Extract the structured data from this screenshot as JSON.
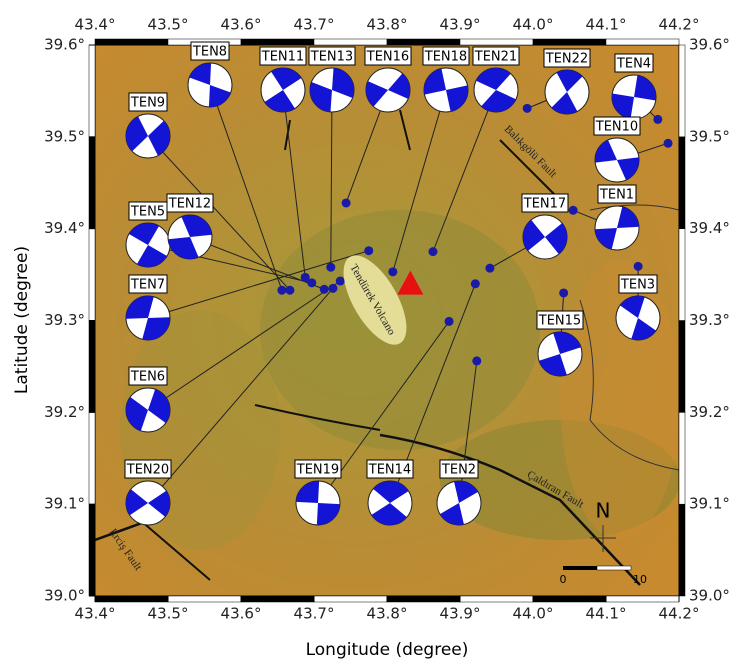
{
  "map": {
    "x_axis_label": "Longitude (degree)",
    "y_axis_label": "Latitude (degree)",
    "xlim": [
      43.4,
      44.2
    ],
    "ylim": [
      39.0,
      39.6
    ],
    "xticks": [
      {
        "value": 43.4,
        "label": "43.4°"
      },
      {
        "value": 43.5,
        "label": "43.5°"
      },
      {
        "value": 43.6,
        "label": "43.6°"
      },
      {
        "value": 43.7,
        "label": "43.7°"
      },
      {
        "value": 43.8,
        "label": "43.8°"
      },
      {
        "value": 43.9,
        "label": "43.9°"
      },
      {
        "value": 44.0,
        "label": "44.0°"
      },
      {
        "value": 44.1,
        "label": "44.1°"
      },
      {
        "value": 44.2,
        "label": "44.2°"
      }
    ],
    "yticks": [
      {
        "value": 39.0,
        "label": "39.0°"
      },
      {
        "value": 39.1,
        "label": "39.1°"
      },
      {
        "value": 39.2,
        "label": "39.2°"
      },
      {
        "value": 39.3,
        "label": "39.3°"
      },
      {
        "value": 39.4,
        "label": "39.4°"
      },
      {
        "value": 39.5,
        "label": "39.5°"
      },
      {
        "value": 39.6,
        "label": "39.6°"
      }
    ],
    "events": [
      {
        "label": "TEN8",
        "lon": 43.656,
        "lat": 39.333
      },
      {
        "label": "TEN11",
        "lon": 43.688,
        "lat": 39.347
      },
      {
        "label": "TEN13",
        "lon": 43.723,
        "lat": 39.358
      },
      {
        "label": "TEN16",
        "lon": 43.744,
        "lat": 39.428
      },
      {
        "label": "TEN18",
        "lon": 43.808,
        "lat": 39.353
      },
      {
        "label": "TEN21",
        "lon": 43.863,
        "lat": 39.375
      },
      {
        "label": "TEN22",
        "lon": 43.992,
        "lat": 39.531
      },
      {
        "label": "TEN4",
        "lon": 44.171,
        "lat": 39.519
      },
      {
        "label": "TEN9",
        "lon": 43.667,
        "lat": 39.333
      },
      {
        "label": "TEN10",
        "lon": 44.185,
        "lat": 39.493
      },
      {
        "label": "TEN5",
        "lon": 43.697,
        "lat": 39.341
      },
      {
        "label": "TEN12",
        "lon": 43.714,
        "lat": 39.334
      },
      {
        "label": "TEN1",
        "lon": 44.055,
        "lat": 39.42
      },
      {
        "label": "TEN17",
        "lon": 43.941,
        "lat": 39.357
      },
      {
        "label": "TEN7",
        "lon": 43.775,
        "lat": 39.376
      },
      {
        "label": "TEN3",
        "lon": 44.144,
        "lat": 39.359
      },
      {
        "label": "TEN15",
        "lon": 44.042,
        "lat": 39.33
      },
      {
        "label": "TEN6",
        "lon": 43.736,
        "lat": 39.343
      },
      {
        "label": "TEN20",
        "lon": 43.726,
        "lat": 39.335
      },
      {
        "label": "TEN19",
        "lon": 43.885,
        "lat": 39.299
      },
      {
        "label": "TEN14",
        "lon": 43.921,
        "lat": 39.34
      },
      {
        "label": "TEN2",
        "lon": 43.923,
        "lat": 39.256
      }
    ],
    "volcano": {
      "label": "Tendürek Volcano",
      "lon": 43.832,
      "lat": 39.339
    },
    "faults": [
      "Balıkgölü Fault",
      "Çaldıran Fault",
      "Erciş Fault"
    ],
    "north": "N",
    "scale_labels": [
      "0",
      "10"
    ]
  }
}
